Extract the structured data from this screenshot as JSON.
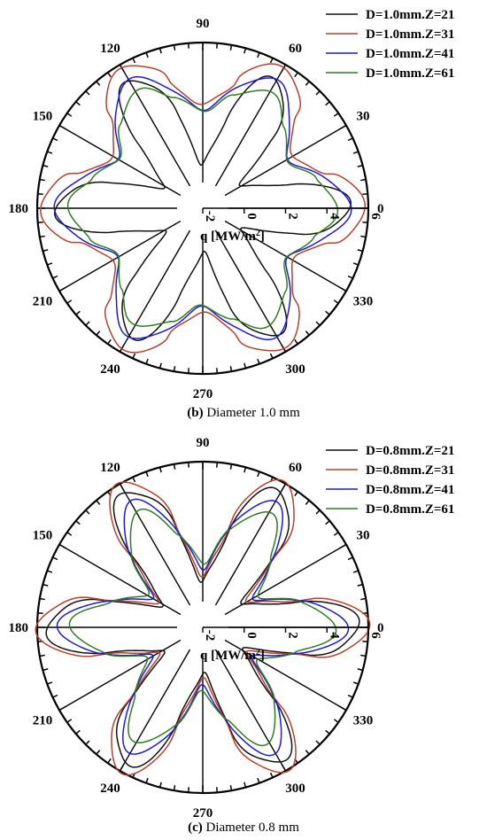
{
  "colors": {
    "black": "#111111",
    "red": "#b8402a",
    "blue": "#1a1ad9",
    "green": "#2f7d1f"
  },
  "chart_data": [
    {
      "type": "polar-line",
      "caption_letter": "(b)",
      "caption_text": "Diameter 1.0 mm",
      "angle_ticks": [
        "0",
        "30",
        "60",
        "90",
        "120",
        "150",
        "180",
        "210",
        "240",
        "270",
        "300",
        "330"
      ],
      "r_ticks": [
        "-2",
        "0",
        "2",
        "4",
        "6"
      ],
      "r_range": [
        -2,
        6
      ],
      "r_label": "q [MW/m",
      "r_label_sup": "2",
      "r_label_close": "]",
      "legend_placement": "top-right",
      "series": [
        {
          "name": "D=1.0mm.Z=21",
          "color": "#111111",
          "min": 0.15,
          "max": 5.1,
          "sharp": 1.25
        },
        {
          "name": "D=1.0mm.Z=31",
          "color": "#b8402a",
          "min": 3.1,
          "max": 5.75,
          "sharp": 1.6
        },
        {
          "name": "D=1.0mm.Z=41",
          "color": "#1a1ad9",
          "min": 2.8,
          "max": 5.1,
          "sharp": 1.0
        },
        {
          "name": "D=1.0mm.Z=61",
          "color": "#2f7d1f",
          "min": 2.7,
          "max": 4.5,
          "sharp": 0.7
        }
      ]
    },
    {
      "type": "polar-line",
      "caption_letter": "(c)",
      "caption_text": "Diameter 0.8 mm",
      "angle_ticks": [
        "0",
        "30",
        "60",
        "90",
        "120",
        "150",
        "180",
        "210",
        "240",
        "270",
        "300",
        "330"
      ],
      "r_ticks": [
        "-2",
        "0",
        "2",
        "4",
        "6"
      ],
      "r_range": [
        -2,
        6
      ],
      "r_label": "q [MW/m",
      "r_label_sup": "2",
      "r_label_close": "]",
      "legend_placement": "top-right",
      "series": [
        {
          "name": "D=0.8mm.Z=21",
          "color": "#111111",
          "min": 0.25,
          "max": 5.5,
          "sharp": 1.4
        },
        {
          "name": "D=0.8mm.Z=31",
          "color": "#b8402a",
          "min": 0.6,
          "max": 5.9,
          "sharp": 1.7
        },
        {
          "name": "D=0.8mm.Z=41",
          "color": "#1a1ad9",
          "min": 0.9,
          "max": 4.9,
          "sharp": 1.1
        },
        {
          "name": "D=0.8mm.Z=61",
          "color": "#2f7d1f",
          "min": 1.1,
          "max": 4.4,
          "sharp": 0.8
        }
      ]
    }
  ]
}
